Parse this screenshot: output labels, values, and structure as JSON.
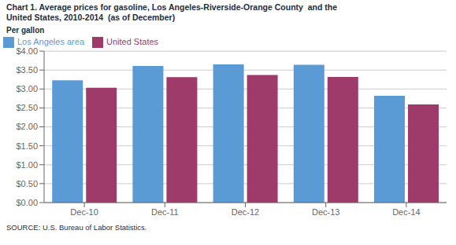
{
  "chart_data": {
    "type": "bar",
    "title": "Chart 1. Average prices for gasoline, Los Angeles-Riverside-Orange County  and the\nUnited States, 2010-2014  (as of December)",
    "y_label": "Per gallon",
    "source": "SOURCE: U.S. Bureau of Labor Statistics.",
    "categories": [
      "Dec-10",
      "Dec-11",
      "Dec-12",
      "Dec-13",
      "Dec-14"
    ],
    "series": [
      {
        "name": "Los Angeles area",
        "color": "#5B9BD5",
        "values": [
          3.23,
          3.61,
          3.65,
          3.64,
          2.82
        ]
      },
      {
        "name": "United States",
        "color": "#9E3B6B",
        "values": [
          3.03,
          3.31,
          3.37,
          3.32,
          2.59
        ]
      }
    ],
    "ylim": [
      0,
      4.0
    ],
    "yticks": [
      {
        "value": 0,
        "label": "$0.00"
      },
      {
        "value": 0.5,
        "label": "$0.50"
      },
      {
        "value": 1.0,
        "label": "$1.00"
      },
      {
        "value": 1.5,
        "label": "$1.50"
      },
      {
        "value": 2.0,
        "label": "$2.00"
      },
      {
        "value": 2.5,
        "label": "$2.50"
      },
      {
        "value": 3.0,
        "label": "$3.00"
      },
      {
        "value": 3.5,
        "label": "$3.50"
      },
      {
        "value": 4.0,
        "label": "$4.00"
      }
    ],
    "grid": true,
    "legend": "upper left"
  }
}
